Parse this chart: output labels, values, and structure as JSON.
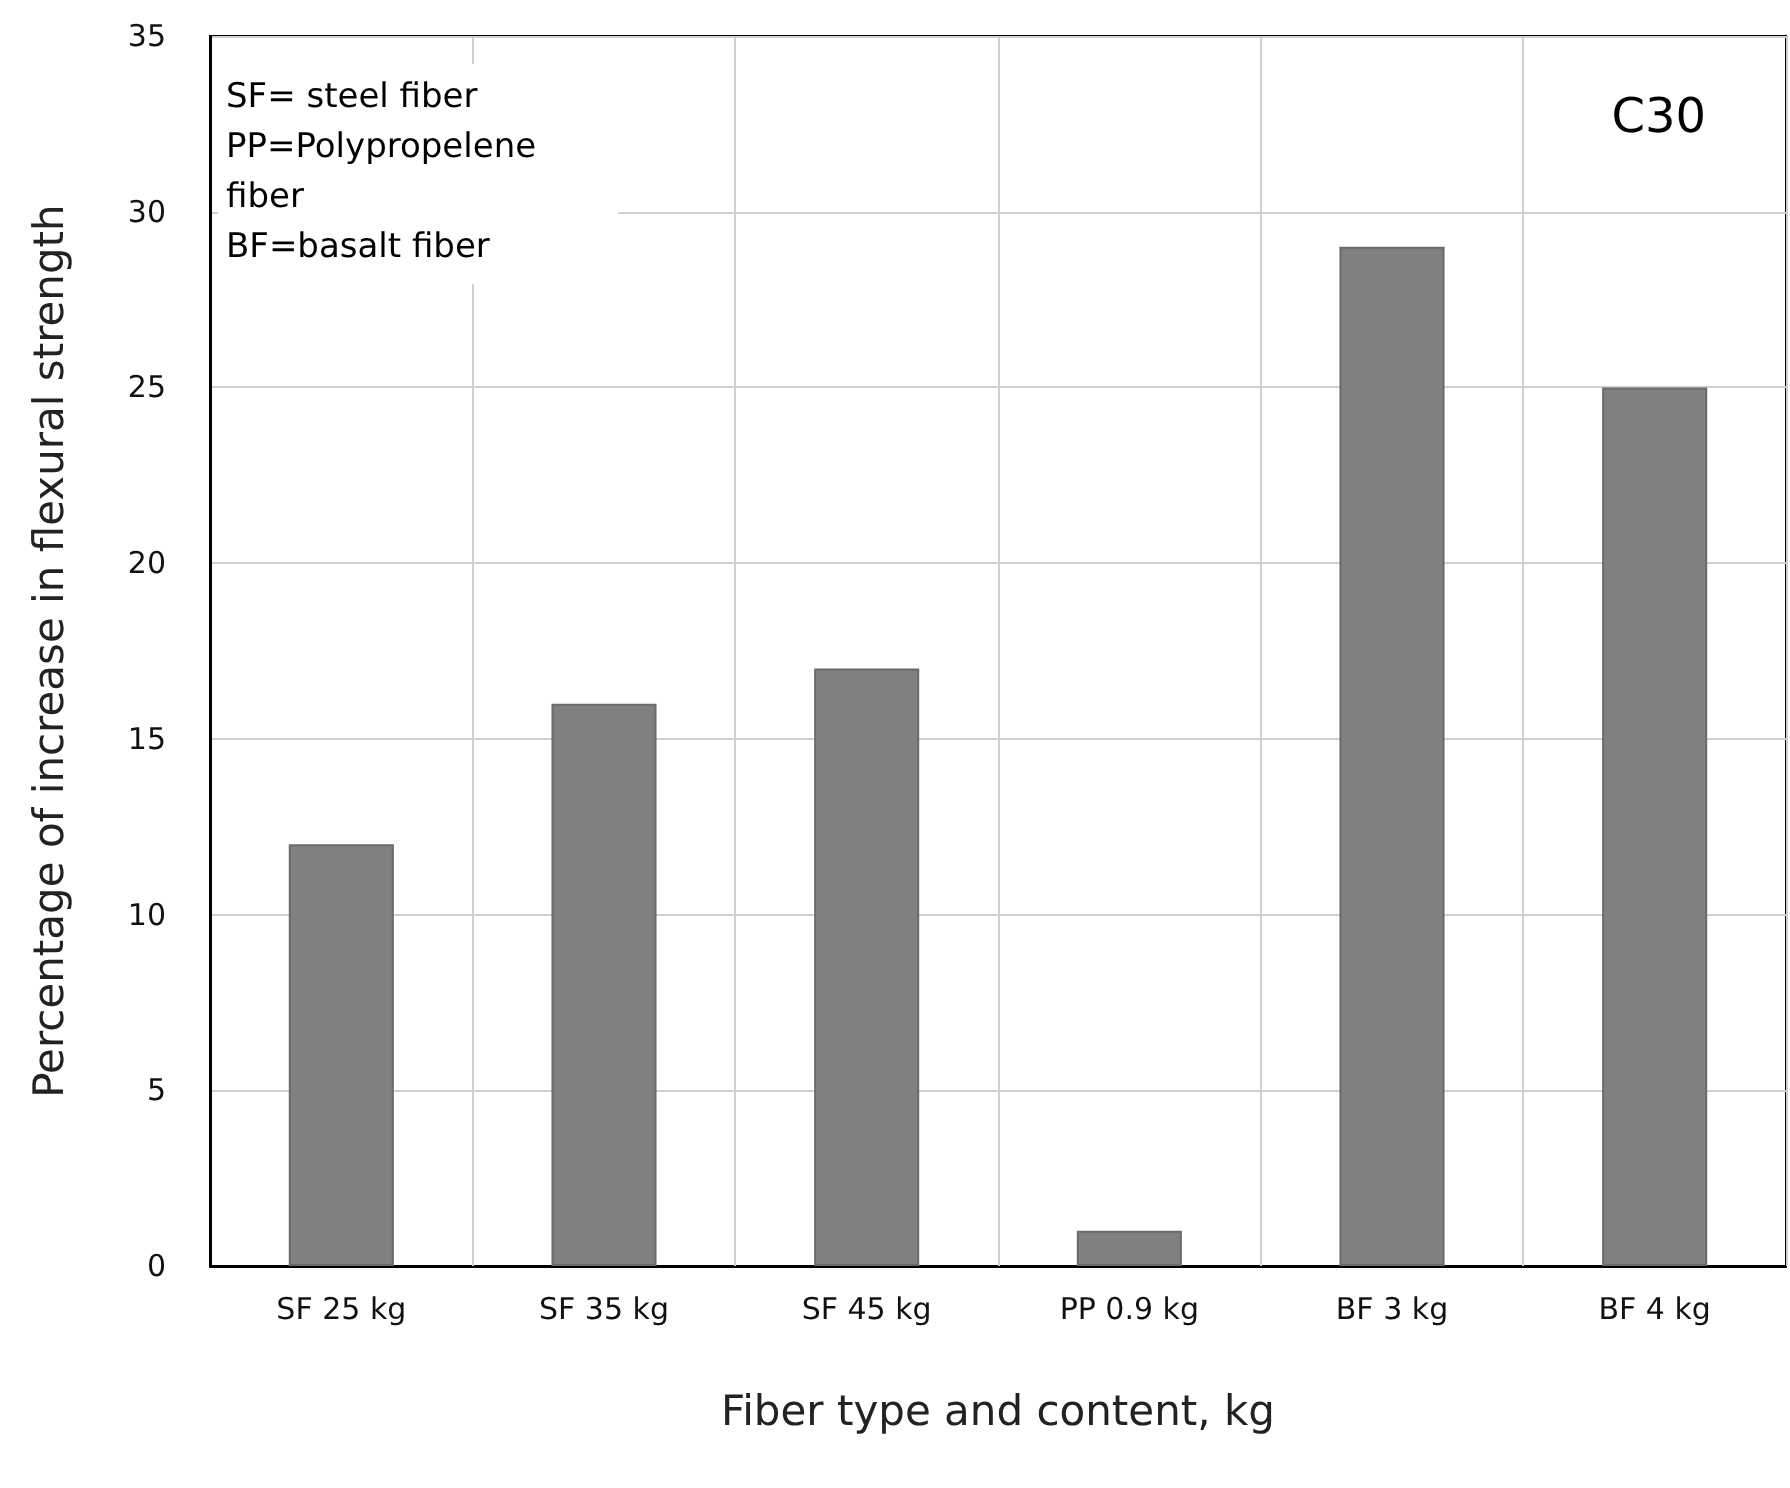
{
  "chart_data": {
    "type": "bar",
    "xlabel": "Fiber type and content, kg",
    "ylabel": "Percentage of increase in flexural strength",
    "categories": [
      "SF 25 kg",
      "SF 35 kg",
      "SF 45 kg",
      "PP 0.9 kg",
      "BF 3 kg",
      "BF 4 kg"
    ],
    "values": [
      12,
      16,
      17,
      1,
      29,
      25
    ],
    "color": "#808080",
    "ylim": [
      0,
      35
    ],
    "yticks": [
      0,
      5,
      10,
      15,
      20,
      25,
      30,
      35
    ],
    "grid": true,
    "annotations": [
      "SF= steel fiber",
      "PP=Polypropelene fiber",
      "BF=basalt fiber",
      "C30"
    ]
  }
}
